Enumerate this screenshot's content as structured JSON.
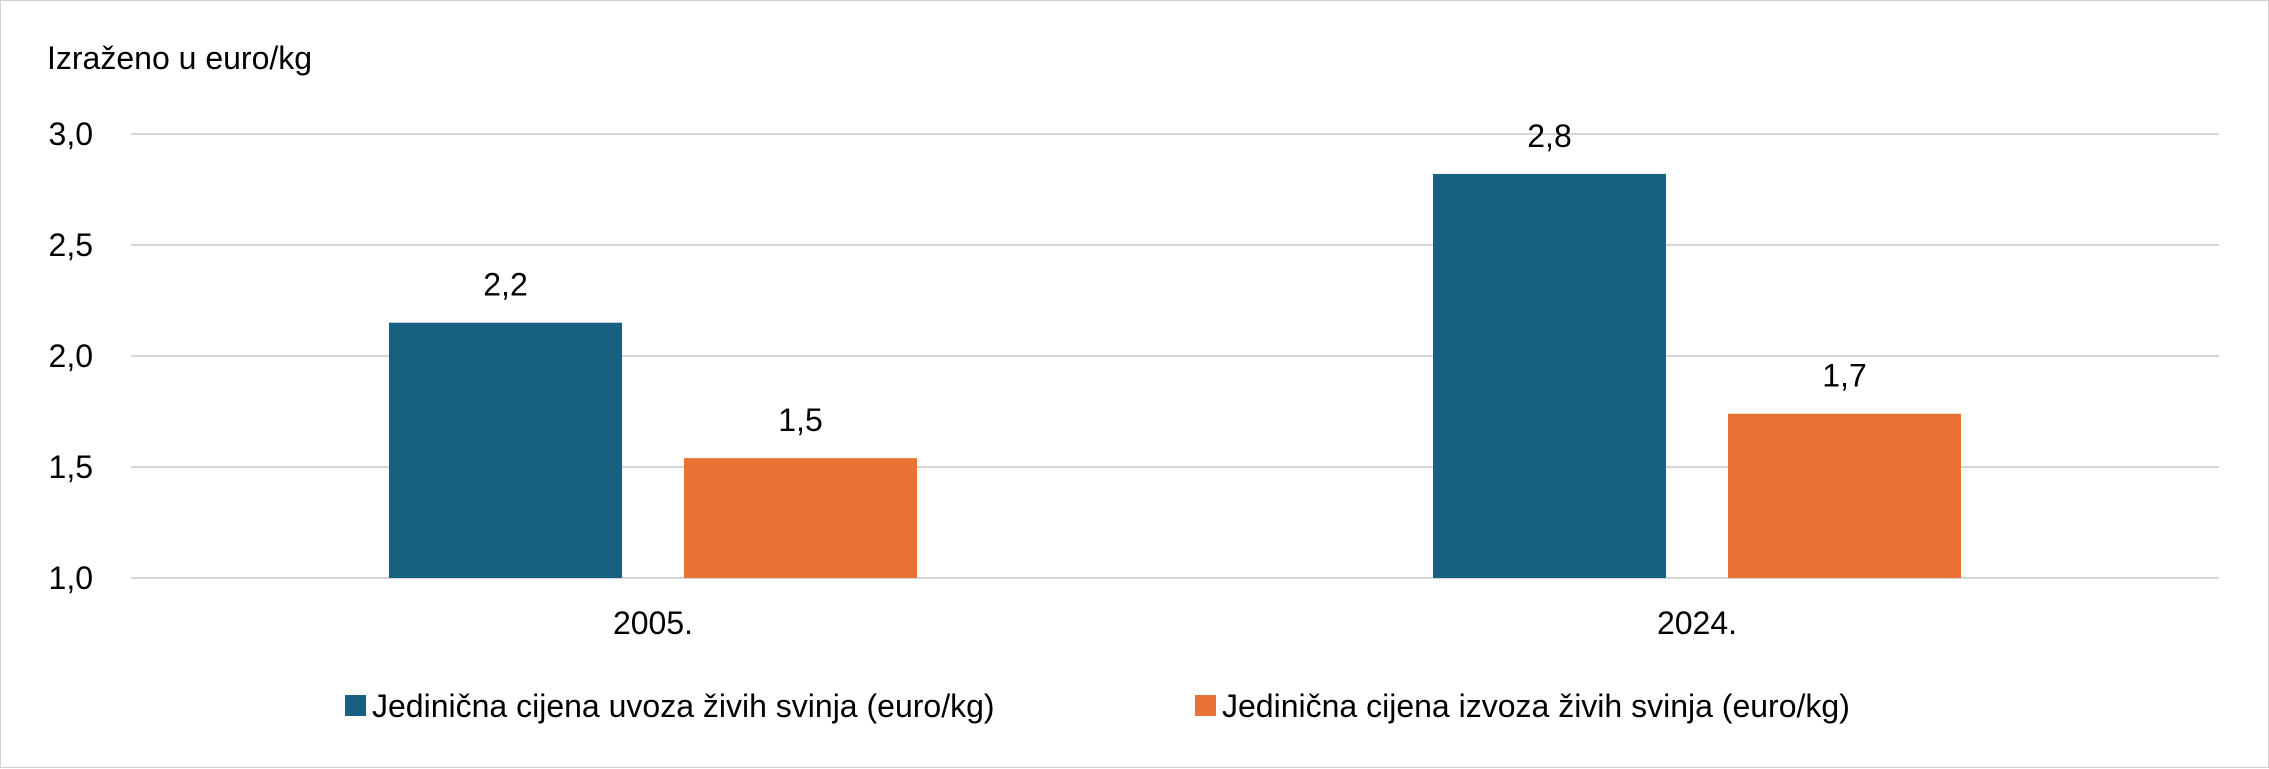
{
  "chart_data": {
    "type": "bar",
    "unit_note": "Izraženo u euro/kg",
    "categories": [
      "2005.",
      "2024."
    ],
    "series": [
      {
        "name": "Jedinična cijena uvoza živih svinja (euro/kg)",
        "values": [
          2.15,
          2.82
        ],
        "labels": [
          "2,2",
          "2,8"
        ],
        "color": "#17607f"
      },
      {
        "name": "Jedinična cijena izvoza živih svinja (euro/kg)",
        "values": [
          1.54,
          1.74
        ],
        "labels": [
          "1,5",
          "1,7"
        ],
        "color": "#e97235"
      }
    ],
    "ylim": [
      1.0,
      3.0
    ],
    "yticks": [
      1.0,
      1.5,
      2.0,
      2.5,
      3.0
    ],
    "ytick_labels": [
      "1,0",
      "1,5",
      "2,0",
      "2,5",
      "3,0"
    ],
    "grid": true,
    "legend": "bottom"
  }
}
